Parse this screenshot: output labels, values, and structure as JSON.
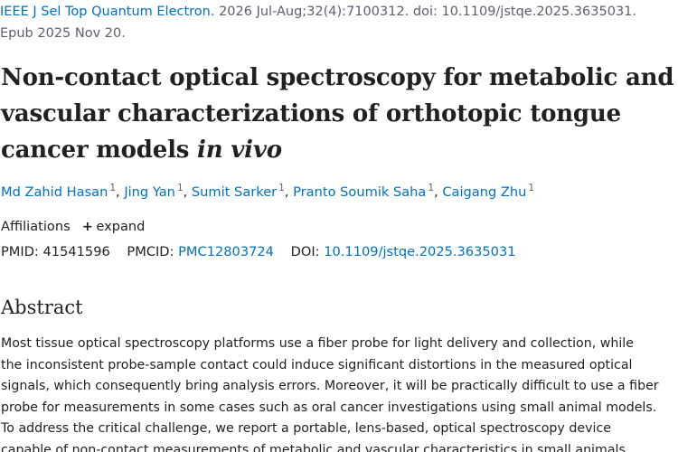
{
  "citation": {
    "journal": "IEEE J Sel Top Quantum Electron.",
    "details": " 2026 Jul-Aug;32(4):7100312. doi: 10.1109/jstqe.2025.3635031.",
    "epub": "Epub 2025 Nov 20."
  },
  "title": {
    "line1": "Non-contact optical spectroscopy for metabolic and",
    "line2": "vascular characterizations of orthotopic tongue",
    "line3_plain": "cancer models ",
    "line3_italic": "in vivo"
  },
  "authors": [
    {
      "name": "Md Zahid Hasan",
      "affil": "1"
    },
    {
      "name": "Jing Yan",
      "affil": "1"
    },
    {
      "name": "Sumit Sarker",
      "affil": "1"
    },
    {
      "name": "Pranto Soumik Saha",
      "affil": "1"
    },
    {
      "name": "Caigang Zhu",
      "affil": "1"
    }
  ],
  "author_separator": ", ",
  "affiliations": {
    "label": "Affiliations",
    "expand_label": "expand",
    "plus_glyph": "+"
  },
  "identifiers": {
    "pmid_label": "PMID:",
    "pmid_value": "41541596",
    "pmcid_label": "PMCID:",
    "pmcid_value": "PMC12803724",
    "doi_label": "DOI:",
    "doi_value": "10.1109/jstqe.2025.3635031"
  },
  "abstract": {
    "heading": "Abstract",
    "lines": [
      "Most tissue optical spectroscopy platforms use a fiber probe for light delivery and collection, while",
      "the inconsistent probe-sample contact could induce significant distortions in the measured optical",
      "signals, which consequently bring analysis errors. Moreover, it will be practically difficult to use a fiber",
      "probe for measurements in some cases such as oral cancer investigations using small animal models.",
      "To address the critical challenge, we report a portable, lens-based, optical spectroscopy device",
      "capable of non-contact measurements of metabolic and vascular characteristics in small animals."
    ]
  }
}
